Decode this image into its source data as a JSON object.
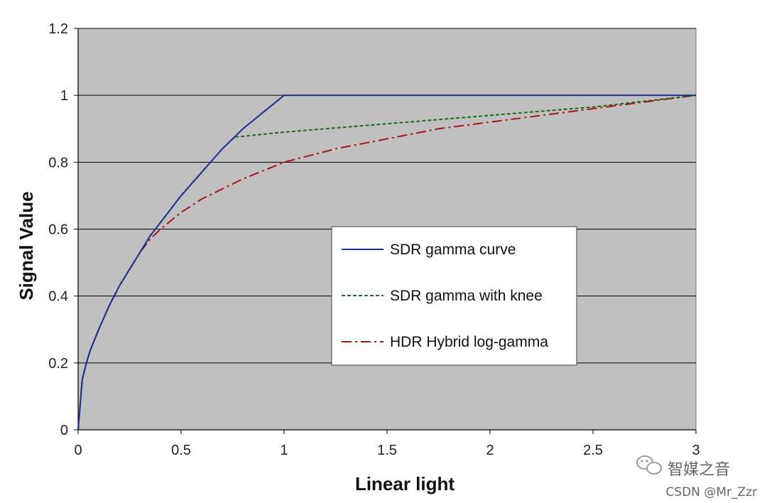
{
  "chart_data": {
    "type": "line",
    "title": "",
    "xlabel": "Linear light",
    "ylabel": "Signal Value",
    "xlim": [
      0,
      3
    ],
    "ylim": [
      0,
      1.2
    ],
    "xticks": [
      "0",
      "0.5",
      "1",
      "1.5",
      "2",
      "2.5",
      "3"
    ],
    "yticks": [
      "0",
      "0.2",
      "0.4",
      "0.6",
      "0.8",
      "1",
      "1.2"
    ],
    "xtick_values": [
      0,
      0.5,
      1,
      1.5,
      2,
      2.5,
      3
    ],
    "ytick_values": [
      0,
      0.2,
      0.4,
      0.6,
      0.8,
      1,
      1.2
    ],
    "grid": "horizontal",
    "plot_background": "#c0c0c0",
    "legend_placement": "center-right",
    "series": [
      {
        "name": "SDR gamma curve",
        "color": "#1f2f8f",
        "style": "solid",
        "points": [
          [
            0,
            0
          ],
          [
            0.02,
            0.15
          ],
          [
            0.04,
            0.2
          ],
          [
            0.06,
            0.24
          ],
          [
            0.1,
            0.3
          ],
          [
            0.15,
            0.37
          ],
          [
            0.2,
            0.43
          ],
          [
            0.25,
            0.48
          ],
          [
            0.3,
            0.53
          ],
          [
            0.35,
            0.58
          ],
          [
            0.4,
            0.62
          ],
          [
            0.5,
            0.7
          ],
          [
            0.6,
            0.77
          ],
          [
            0.7,
            0.84
          ],
          [
            0.8,
            0.9
          ],
          [
            0.9,
            0.95
          ],
          [
            1.0,
            1.0
          ],
          [
            3.0,
            1.0
          ]
        ]
      },
      {
        "name": "SDR gamma with knee",
        "color": "#1e6a1e",
        "style": "dashed",
        "points": [
          [
            0,
            0
          ],
          [
            0.02,
            0.15
          ],
          [
            0.04,
            0.2
          ],
          [
            0.06,
            0.24
          ],
          [
            0.1,
            0.3
          ],
          [
            0.15,
            0.37
          ],
          [
            0.2,
            0.43
          ],
          [
            0.25,
            0.48
          ],
          [
            0.3,
            0.53
          ],
          [
            0.35,
            0.58
          ],
          [
            0.4,
            0.62
          ],
          [
            0.5,
            0.7
          ],
          [
            0.6,
            0.77
          ],
          [
            0.7,
            0.84
          ],
          [
            0.76,
            0.875
          ],
          [
            1.0,
            0.89
          ],
          [
            1.5,
            0.915
          ],
          [
            2.0,
            0.94
          ],
          [
            2.5,
            0.965
          ],
          [
            3.0,
            1.0
          ]
        ]
      },
      {
        "name": "HDR Hybrid log-gamma",
        "color": "#a01a1a",
        "style": "dash-dot",
        "points": [
          [
            0,
            0
          ],
          [
            0.02,
            0.15
          ],
          [
            0.04,
            0.2
          ],
          [
            0.06,
            0.24
          ],
          [
            0.1,
            0.3
          ],
          [
            0.15,
            0.37
          ],
          [
            0.2,
            0.43
          ],
          [
            0.25,
            0.48
          ],
          [
            0.3,
            0.53
          ],
          [
            0.35,
            0.57
          ],
          [
            0.4,
            0.6
          ],
          [
            0.5,
            0.65
          ],
          [
            0.6,
            0.69
          ],
          [
            0.7,
            0.72
          ],
          [
            0.8,
            0.75
          ],
          [
            1.0,
            0.8
          ],
          [
            1.25,
            0.84
          ],
          [
            1.5,
            0.87
          ],
          [
            1.75,
            0.9
          ],
          [
            2.0,
            0.92
          ],
          [
            2.25,
            0.94
          ],
          [
            2.5,
            0.96
          ],
          [
            2.75,
            0.98
          ],
          [
            3.0,
            1.0
          ]
        ]
      }
    ]
  },
  "watermark": {
    "brand": "智媒之音",
    "credit": "CSDN @Mr_Zzr",
    "icon": "wechat-icon"
  }
}
